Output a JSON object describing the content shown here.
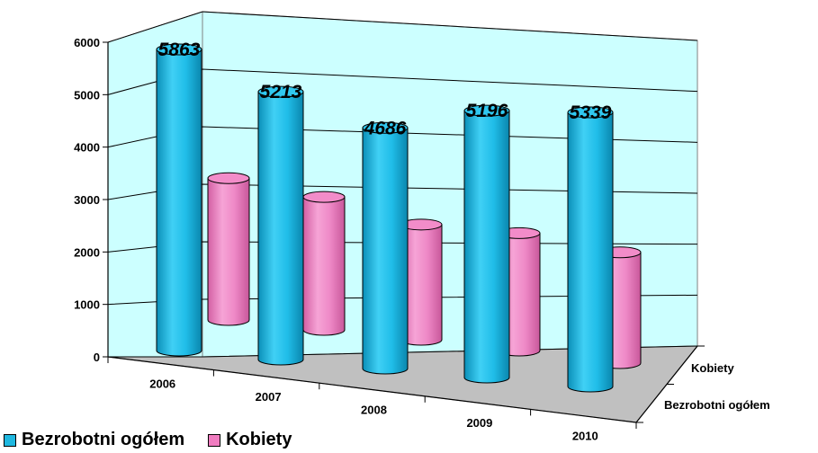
{
  "chart_data": {
    "type": "bar",
    "subtype": "3d-cylinder",
    "categories": [
      "2006",
      "2007",
      "2008",
      "2009",
      "2010"
    ],
    "series": [
      {
        "name": "Bezrobotni ogółem",
        "values": [
          5863,
          5213,
          4686,
          5196,
          5339
        ],
        "color": "#1fb8e0"
      },
      {
        "name": "Kobiety",
        "values": [
          3200,
          3000,
          2600,
          2650,
          2500
        ],
        "color": "#f07cc0"
      }
    ],
    "data_labels": [
      "5863",
      "5213",
      "4686",
      "5196",
      "5339"
    ],
    "depth_axis": [
      "Kobiety",
      "Bezrobotni ogółem"
    ],
    "ylim": [
      0,
      6000
    ],
    "yticks": [
      "0",
      "1000",
      "2000",
      "3000",
      "4000",
      "5000",
      "6000"
    ],
    "grid": true,
    "wall_color": "#ccffff",
    "legend_position": "bottom-left",
    "title": "",
    "xlabel": "",
    "ylabel": ""
  }
}
